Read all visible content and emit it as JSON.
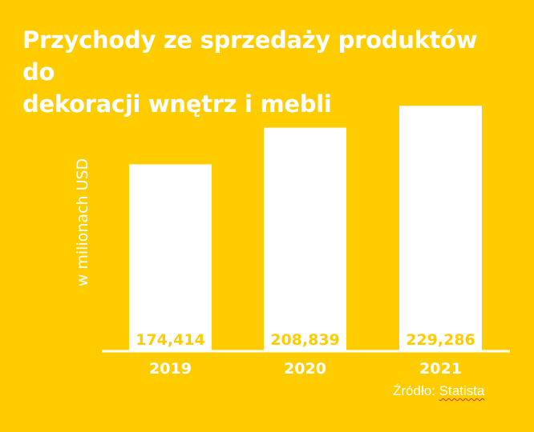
{
  "colors": {
    "background": "#FFCC00",
    "bar": "#FFFFFF",
    "value_text": "#FFCC00",
    "axis_text": "#FFFFFF"
  },
  "chart_data": {
    "type": "bar",
    "title_lines": [
      "Przychody ze sprzedaży produktów do",
      "dekoracji wnętrz i mebli"
    ],
    "ylabel": "w milionach USD",
    "xlabel": "",
    "categories": [
      "2019",
      "2020",
      "2021"
    ],
    "values": [
      174.414,
      208.839,
      229.286
    ],
    "value_labels": [
      "174,414",
      "208,839",
      "229,286"
    ],
    "ylim": [
      0,
      240
    ],
    "grid": false,
    "legend": "none"
  },
  "source": {
    "prefix": "Źródło: ",
    "link": "Statista"
  }
}
